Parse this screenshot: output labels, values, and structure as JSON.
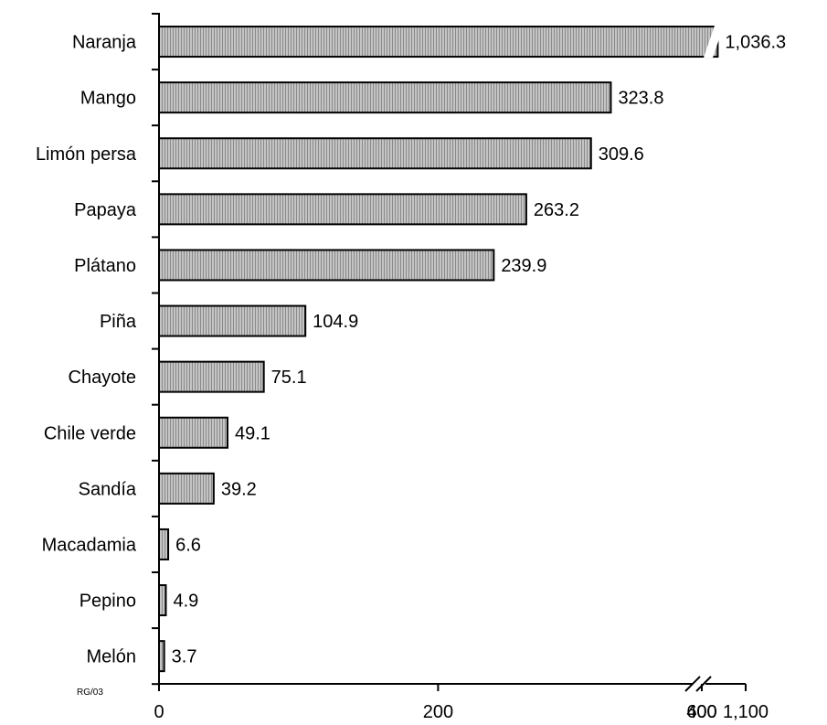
{
  "chart_data": {
    "type": "bar",
    "orientation": "horizontal",
    "categories": [
      "Naranja",
      "Mango",
      "Limón persa",
      "Papaya",
      "Plátano",
      "Piña",
      "Chayote",
      "Chile verde",
      "Sandía",
      "Macadamia",
      "Pepino",
      "Melón"
    ],
    "values": [
      1036.3,
      323.8,
      309.6,
      263.2,
      239.9,
      104.9,
      75.1,
      49.1,
      39.2,
      6.6,
      4.9,
      3.7
    ],
    "value_labels": [
      "1,036.3",
      "323.8",
      "309.6",
      "263.2",
      "239.9",
      "104.9",
      "75.1",
      "49.1",
      "39.2",
      "6.6",
      "4.9",
      "3.7"
    ],
    "x_ticks": [
      {
        "value": 0,
        "label": "0"
      },
      {
        "value": 200,
        "label": "200"
      },
      {
        "value": 400,
        "label": "400"
      },
      {
        "value": 600,
        "label": "600"
      },
      {
        "value": 1100,
        "label": "1,100"
      }
    ],
    "axis_break": {
      "from": 700,
      "to": 1000
    },
    "title": "",
    "xlabel": "",
    "ylabel": "",
    "xlim": [
      0,
      1100
    ],
    "grid": false,
    "legend": "none",
    "note": "RG/03",
    "colors": {
      "bar_fill": "#c4c4c4",
      "bar_hatch": "#8a8a8a",
      "bar_stroke": "#000000",
      "axis": "#000000",
      "background": "#ffffff"
    }
  }
}
